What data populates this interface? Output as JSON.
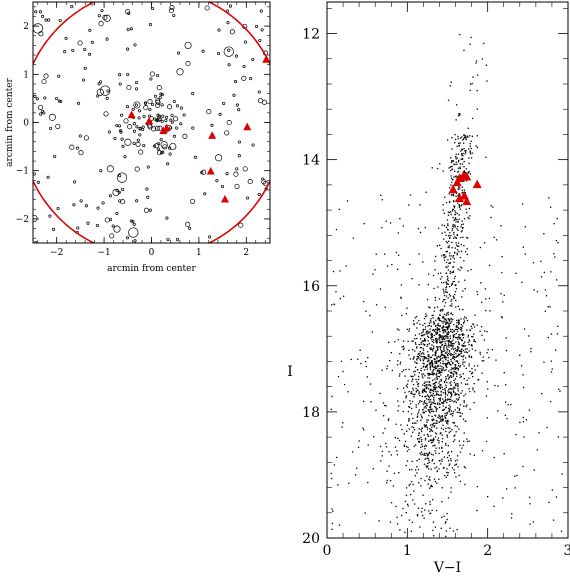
{
  "chart_data": [
    {
      "id": "left",
      "type": "scatter",
      "title": "",
      "xlabel": "arcmin from center",
      "ylabel": "arcmin from center",
      "xlim": [
        -2.5,
        2.5
      ],
      "ylim": [
        -2.5,
        2.5
      ],
      "xticks": [
        -2,
        -1,
        0,
        1,
        2
      ],
      "yticks": [
        -2,
        -1,
        0,
        1,
        2
      ],
      "tick_labels_x": [
        "−2",
        "−1",
        "0",
        "1",
        "2"
      ],
      "tick_labels_y": [
        "−2",
        "−1",
        "0",
        "1",
        "2"
      ],
      "circle": {
        "cx": 0,
        "cy": 0,
        "r": 2.78,
        "color": "#dd0000"
      },
      "background_stars": {
        "marker": "open-circle",
        "note_count": 300
      },
      "highlight_color": "#dd0000",
      "highlight_marker": "triangle",
      "highlight_points": [
        {
          "x": -0.42,
          "y": 0.15
        },
        {
          "x": -0.05,
          "y": 0.02
        },
        {
          "x": 0.25,
          "y": -0.18
        },
        {
          "x": 0.32,
          "y": -0.12
        },
        {
          "x": 1.28,
          "y": -0.28
        },
        {
          "x": 2.02,
          "y": -0.1
        },
        {
          "x": 1.25,
          "y": -1.02
        },
        {
          "x": 1.55,
          "y": -1.6
        },
        {
          "x": 2.42,
          "y": 1.3
        }
      ]
    },
    {
      "id": "right",
      "type": "scatter",
      "title": "",
      "xlabel": "V−I",
      "ylabel": "I",
      "xlim": [
        0,
        3
      ],
      "ylim": [
        20,
        11.5
      ],
      "xticks": [
        0,
        1,
        2,
        3
      ],
      "yticks": [
        12,
        14,
        16,
        18,
        20
      ],
      "tick_labels_x": [
        "0",
        "1",
        "2",
        "3"
      ],
      "tick_labels_y": [
        "12",
        "14",
        "16",
        "18",
        "20"
      ],
      "highlight_color": "#dd0000",
      "highlight_marker": "triangle",
      "highlight_points": [
        {
          "x": 1.57,
          "y": 14.48
        },
        {
          "x": 1.62,
          "y": 14.37
        },
        {
          "x": 1.65,
          "y": 14.3
        },
        {
          "x": 1.7,
          "y": 14.26
        },
        {
          "x": 1.74,
          "y": 14.28
        },
        {
          "x": 1.87,
          "y": 14.4
        },
        {
          "x": 1.65,
          "y": 14.62
        },
        {
          "x": 1.71,
          "y": 14.58
        },
        {
          "x": 1.74,
          "y": 14.67
        }
      ]
    }
  ]
}
